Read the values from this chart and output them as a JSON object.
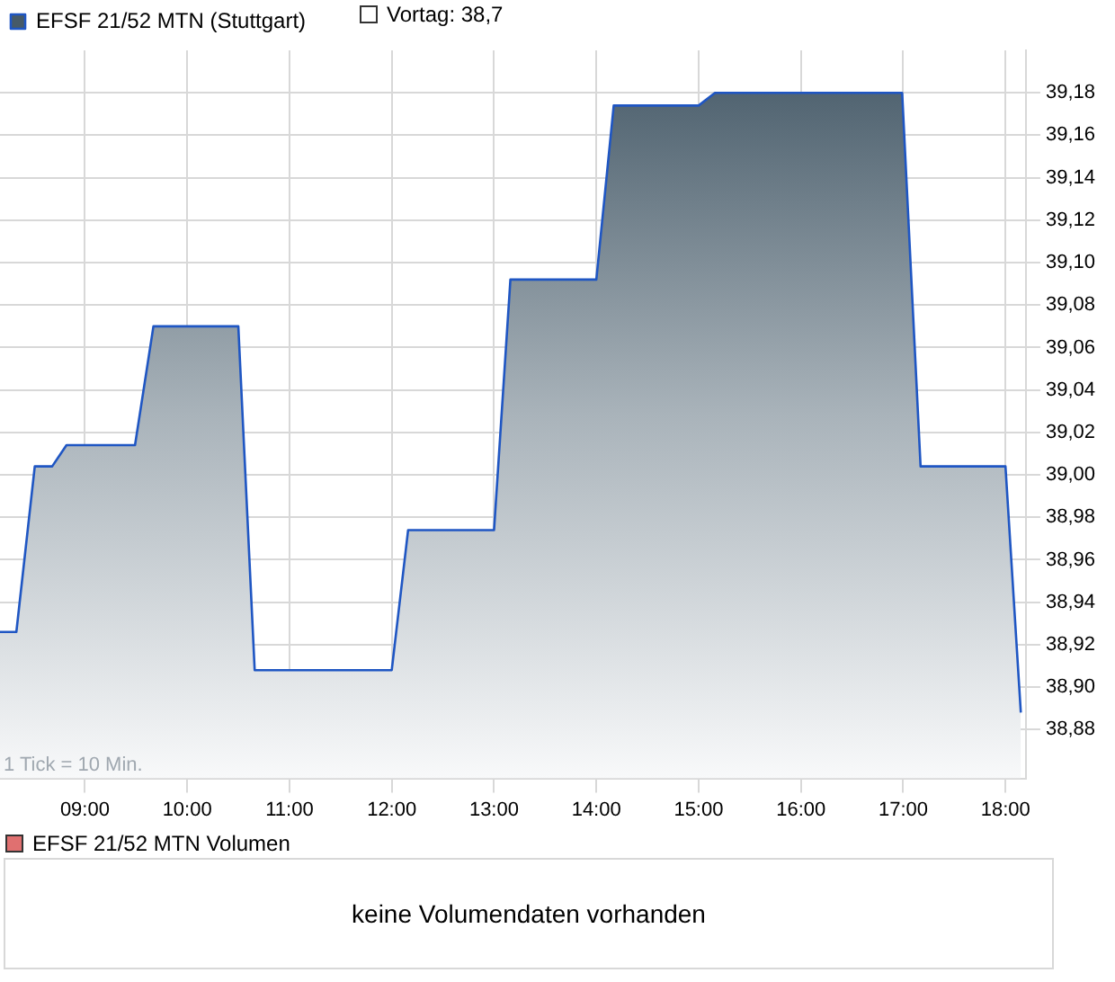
{
  "chart_data": {
    "type": "area",
    "x": [
      8.17,
      8.33,
      8.51,
      8.68,
      8.82,
      9.49,
      9.67,
      10.5,
      10.66,
      12.0,
      12.16,
      13.0,
      13.16,
      14.0,
      14.17,
      15.0,
      15.16,
      16.99,
      17.17,
      18.0,
      18.15
    ],
    "series": [
      {
        "name": "EFSF 21/52 MTN (Stuttgart)",
        "color": "#1f56c3",
        "values": [
          38.926,
          38.926,
          39.004,
          39.004,
          39.014,
          39.014,
          39.07,
          39.07,
          38.908,
          38.908,
          38.974,
          38.974,
          39.092,
          39.092,
          39.174,
          39.174,
          39.18,
          39.18,
          39.004,
          39.004,
          38.888
        ]
      }
    ],
    "xlim": [
      8.17,
      18.2
    ],
    "xticks": [
      {
        "value": 9,
        "label": "09:00"
      },
      {
        "value": 10,
        "label": "10:00"
      },
      {
        "value": 11,
        "label": "11:00"
      },
      {
        "value": 12,
        "label": "12:00"
      },
      {
        "value": 13,
        "label": "13:00"
      },
      {
        "value": 14,
        "label": "14:00"
      },
      {
        "value": 15,
        "label": "15:00"
      },
      {
        "value": 16,
        "label": "16:00"
      },
      {
        "value": 17,
        "label": "17:00"
      },
      {
        "value": 18,
        "label": "18:00"
      }
    ],
    "ylim": [
      38.857,
      39.2
    ],
    "yticks": [
      {
        "value": 38.88,
        "label": "38,88"
      },
      {
        "value": 38.9,
        "label": "38,90"
      },
      {
        "value": 38.92,
        "label": "38,92"
      },
      {
        "value": 38.94,
        "label": "38,94"
      },
      {
        "value": 38.96,
        "label": "38,96"
      },
      {
        "value": 38.98,
        "label": "38,98"
      },
      {
        "value": 39.0,
        "label": "39,00"
      },
      {
        "value": 39.02,
        "label": "39,02"
      },
      {
        "value": 39.04,
        "label": "39,04"
      },
      {
        "value": 39.06,
        "label": "39,06"
      },
      {
        "value": 39.08,
        "label": "39,08"
      },
      {
        "value": 39.1,
        "label": "39,10"
      },
      {
        "value": 39.12,
        "label": "39,12"
      },
      {
        "value": 39.14,
        "label": "39,14"
      },
      {
        "value": 39.16,
        "label": "39,16"
      },
      {
        "value": 39.18,
        "label": "39,18"
      }
    ],
    "grid": true,
    "legend": "top left",
    "marker": "none",
    "annotations": [
      "Vortag: 38,7",
      "1 Tick = 10 Min.",
      "EFSF 21/52 MTN Volumen",
      "keine Volumendaten vorhanden"
    ]
  }
}
